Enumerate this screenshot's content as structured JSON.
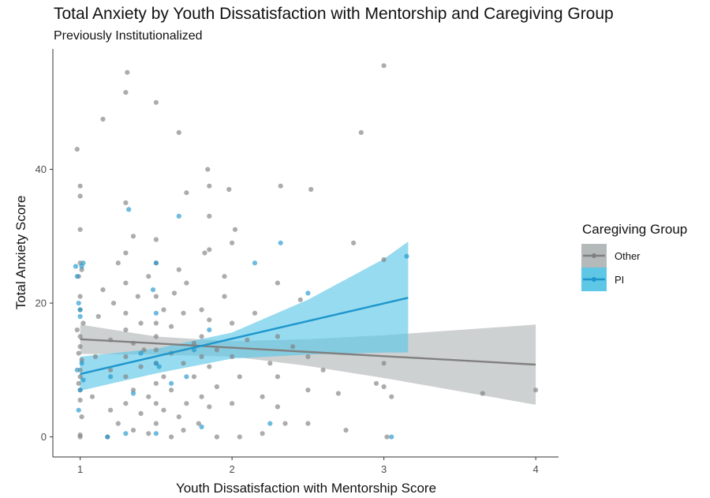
{
  "chart_data": {
    "type": "scatter",
    "title": "Total Anxiety by Youth Dissatisfaction with Mentorship and Caregiving Group",
    "subtitle": "Previously Institutionalized",
    "xlabel": "Youth Dissatisfaction with Mentorship Score",
    "ylabel": "Total Anxiety Score",
    "xlim": [
      0.82,
      4.15
    ],
    "ylim": [
      -3,
      58
    ],
    "x_ticks": [
      1,
      2,
      3,
      4
    ],
    "y_ticks": [
      0,
      20,
      40
    ],
    "grid": false,
    "legend": {
      "title": "Caregiving Group",
      "position": "right"
    },
    "series": [
      {
        "name": "Other",
        "color": "#808080",
        "band_color": "#b4b9ba",
        "fit": {
          "x": [
            1,
            4
          ],
          "y": [
            14.6,
            10.8
          ]
        },
        "ci_upper": [
          [
            1,
            16.8
          ],
          [
            1.5,
            15.0
          ],
          [
            2,
            14.3
          ],
          [
            2.5,
            14.6
          ],
          [
            3,
            15.2
          ],
          [
            3.5,
            16.0
          ],
          [
            4,
            16.8
          ]
        ],
        "ci_lower": [
          [
            1,
            12.4
          ],
          [
            1.5,
            12.3
          ],
          [
            2,
            12.0
          ],
          [
            2.5,
            10.6
          ],
          [
            3,
            8.8
          ],
          [
            3.5,
            6.8
          ],
          [
            4,
            4.8
          ]
        ],
        "points": [
          [
            1.0,
            0.3
          ],
          [
            1.0,
            0.0
          ],
          [
            1.01,
            3.0
          ],
          [
            1.0,
            5.5
          ],
          [
            1.0,
            7.0
          ],
          [
            0.99,
            8.0
          ],
          [
            1.0,
            9.0
          ],
          [
            1.0,
            10.0
          ],
          [
            1.01,
            11.5
          ],
          [
            0.99,
            12.5
          ],
          [
            1.0,
            13.5
          ],
          [
            1.0,
            15.0
          ],
          [
            0.98,
            16.0
          ],
          [
            1.02,
            17.0
          ],
          [
            1.0,
            19.0
          ],
          [
            1.0,
            21.0
          ],
          [
            0.99,
            24.0
          ],
          [
            1.01,
            25.0
          ],
          [
            1.0,
            26.0
          ],
          [
            1.0,
            31.0
          ],
          [
            1.0,
            36.0
          ],
          [
            1.0,
            37.5
          ],
          [
            0.98,
            43.0
          ],
          [
            1.08,
            6.0
          ],
          [
            1.1,
            12.0
          ],
          [
            1.12,
            18.0
          ],
          [
            1.15,
            22.0
          ],
          [
            1.15,
            47.5
          ],
          [
            1.18,
            0.0
          ],
          [
            1.2,
            4.0
          ],
          [
            1.2,
            10.0
          ],
          [
            1.2,
            14.5
          ],
          [
            1.22,
            20.0
          ],
          [
            1.25,
            2.0
          ],
          [
            1.25,
            26.0
          ],
          [
            1.3,
            5.0
          ],
          [
            1.3,
            9.0
          ],
          [
            1.3,
            12.0
          ],
          [
            1.3,
            16.0
          ],
          [
            1.3,
            18.5
          ],
          [
            1.3,
            23.0
          ],
          [
            1.3,
            27.5
          ],
          [
            1.3,
            35.0
          ],
          [
            1.3,
            51.5
          ],
          [
            1.31,
            54.5
          ],
          [
            1.35,
            1.0
          ],
          [
            1.35,
            7.0
          ],
          [
            1.35,
            14.0
          ],
          [
            1.38,
            21.0
          ],
          [
            1.35,
            30.0
          ],
          [
            1.4,
            3.5
          ],
          [
            1.4,
            10.5
          ],
          [
            1.42,
            13.0
          ],
          [
            1.4,
            17.0
          ],
          [
            1.45,
            0.5
          ],
          [
            1.45,
            6.0
          ],
          [
            1.45,
            24.0
          ],
          [
            1.5,
            2.0
          ],
          [
            1.5,
            5.0
          ],
          [
            1.5,
            8.0
          ],
          [
            1.5,
            11.0
          ],
          [
            1.5,
            13.0
          ],
          [
            1.5,
            15.0
          ],
          [
            1.5,
            17.0
          ],
          [
            1.5,
            21.0
          ],
          [
            1.5,
            26.0
          ],
          [
            1.5,
            29.5
          ],
          [
            1.5,
            50.0
          ],
          [
            1.55,
            4.0
          ],
          [
            1.55,
            9.0
          ],
          [
            1.55,
            19.0
          ],
          [
            1.6,
            0.0
          ],
          [
            1.6,
            7.0
          ],
          [
            1.6,
            12.5
          ],
          [
            1.6,
            16.5
          ],
          [
            1.62,
            21.5
          ],
          [
            1.65,
            3.0
          ],
          [
            1.65,
            25.0
          ],
          [
            1.65,
            45.5
          ],
          [
            1.68,
            1.0
          ],
          [
            1.68,
            11.0
          ],
          [
            1.68,
            18.5
          ],
          [
            1.7,
            5.0
          ],
          [
            1.7,
            23.0
          ],
          [
            1.7,
            36.5
          ],
          [
            1.75,
            9.0
          ],
          [
            1.75,
            14.0
          ],
          [
            1.78,
            2.0
          ],
          [
            1.8,
            6.0
          ],
          [
            1.8,
            12.0
          ],
          [
            1.8,
            15.0
          ],
          [
            1.8,
            19.0
          ],
          [
            1.82,
            27.5
          ],
          [
            1.85,
            4.5
          ],
          [
            1.85,
            10.5
          ],
          [
            1.85,
            17.5
          ],
          [
            1.85,
            28.0
          ],
          [
            1.85,
            33.0
          ],
          [
            1.85,
            37.5
          ],
          [
            1.84,
            40.0
          ],
          [
            1.9,
            0.0
          ],
          [
            1.9,
            7.5
          ],
          [
            1.9,
            13.0
          ],
          [
            1.95,
            21.0
          ],
          [
            1.95,
            24.0
          ],
          [
            2.0,
            5.0
          ],
          [
            2.0,
            12.0
          ],
          [
            2.0,
            17.0
          ],
          [
            2.0,
            29.0
          ],
          [
            1.98,
            37.0
          ],
          [
            2.02,
            31.0
          ],
          [
            2.05,
            0.0
          ],
          [
            2.05,
            9.0
          ],
          [
            2.1,
            14.5
          ],
          [
            2.15,
            18.5
          ],
          [
            2.2,
            0.5
          ],
          [
            2.2,
            6.0
          ],
          [
            2.25,
            11.0
          ],
          [
            2.3,
            4.5
          ],
          [
            2.3,
            9.0
          ],
          [
            2.3,
            15.0
          ],
          [
            2.3,
            23.0
          ],
          [
            2.32,
            37.5
          ],
          [
            2.35,
            2.0
          ],
          [
            2.4,
            13.5
          ],
          [
            2.45,
            20.5
          ],
          [
            2.5,
            2.0
          ],
          [
            2.5,
            7.0
          ],
          [
            2.5,
            12.0
          ],
          [
            2.52,
            37.0
          ],
          [
            2.6,
            10.0
          ],
          [
            2.7,
            6.5
          ],
          [
            2.75,
            1.0
          ],
          [
            2.8,
            29.0
          ],
          [
            2.85,
            45.5
          ],
          [
            2.95,
            8.0
          ],
          [
            3.0,
            7.5
          ],
          [
            3.0,
            11.0
          ],
          [
            3.02,
            0.0
          ],
          [
            3.05,
            6.0
          ],
          [
            3.0,
            26.5
          ],
          [
            3.0,
            55.5
          ],
          [
            3.65,
            6.5
          ],
          [
            4.0,
            7.0
          ]
        ]
      },
      {
        "name": "PI",
        "color": "#1e96cd",
        "band_color": "#5ec7e6",
        "fit": {
          "x": [
            1,
            3.16
          ],
          "y": [
            9.4,
            20.8
          ]
        },
        "ci_upper": [
          [
            1,
            12.0
          ],
          [
            1.5,
            13.2
          ],
          [
            2,
            15.6
          ],
          [
            2.5,
            20.5
          ],
          [
            3,
            26.6
          ],
          [
            3.16,
            29.2
          ]
        ],
        "ci_lower": [
          [
            1,
            6.9
          ],
          [
            1.5,
            9.5
          ],
          [
            2,
            11.7
          ],
          [
            2.5,
            12.3
          ],
          [
            3,
            12.6
          ],
          [
            3.16,
            12.6
          ]
        ],
        "points": [
          [
            0.99,
            4.0
          ],
          [
            1.0,
            7.0
          ],
          [
            1.02,
            8.5
          ],
          [
            0.98,
            10.0
          ],
          [
            1.01,
            11.0
          ],
          [
            1.0,
            18.0
          ],
          [
            1.0,
            19.0
          ],
          [
            0.99,
            20.0
          ],
          [
            0.98,
            24.0
          ],
          [
            0.97,
            25.5
          ],
          [
            1.01,
            25.5
          ],
          [
            1.02,
            26.0
          ],
          [
            1.18,
            0.0
          ],
          [
            1.2,
            9.0
          ],
          [
            1.3,
            0.5
          ],
          [
            1.32,
            34.0
          ],
          [
            1.35,
            6.5
          ],
          [
            1.4,
            12.5
          ],
          [
            1.48,
            22.0
          ],
          [
            1.5,
            11.0
          ],
          [
            1.52,
            10.5
          ],
          [
            1.5,
            26.0
          ],
          [
            1.5,
            18.5
          ],
          [
            1.5,
            0.5
          ],
          [
            1.6,
            8.0
          ],
          [
            1.65,
            33.0
          ],
          [
            1.7,
            9.0
          ],
          [
            1.75,
            13.0
          ],
          [
            1.8,
            1.5
          ],
          [
            1.85,
            16.0
          ],
          [
            2.15,
            26.0
          ],
          [
            2.25,
            2.0
          ],
          [
            2.32,
            29.0
          ],
          [
            2.5,
            21.5
          ],
          [
            3.05,
            0.0
          ],
          [
            3.15,
            27.0
          ]
        ]
      }
    ]
  }
}
